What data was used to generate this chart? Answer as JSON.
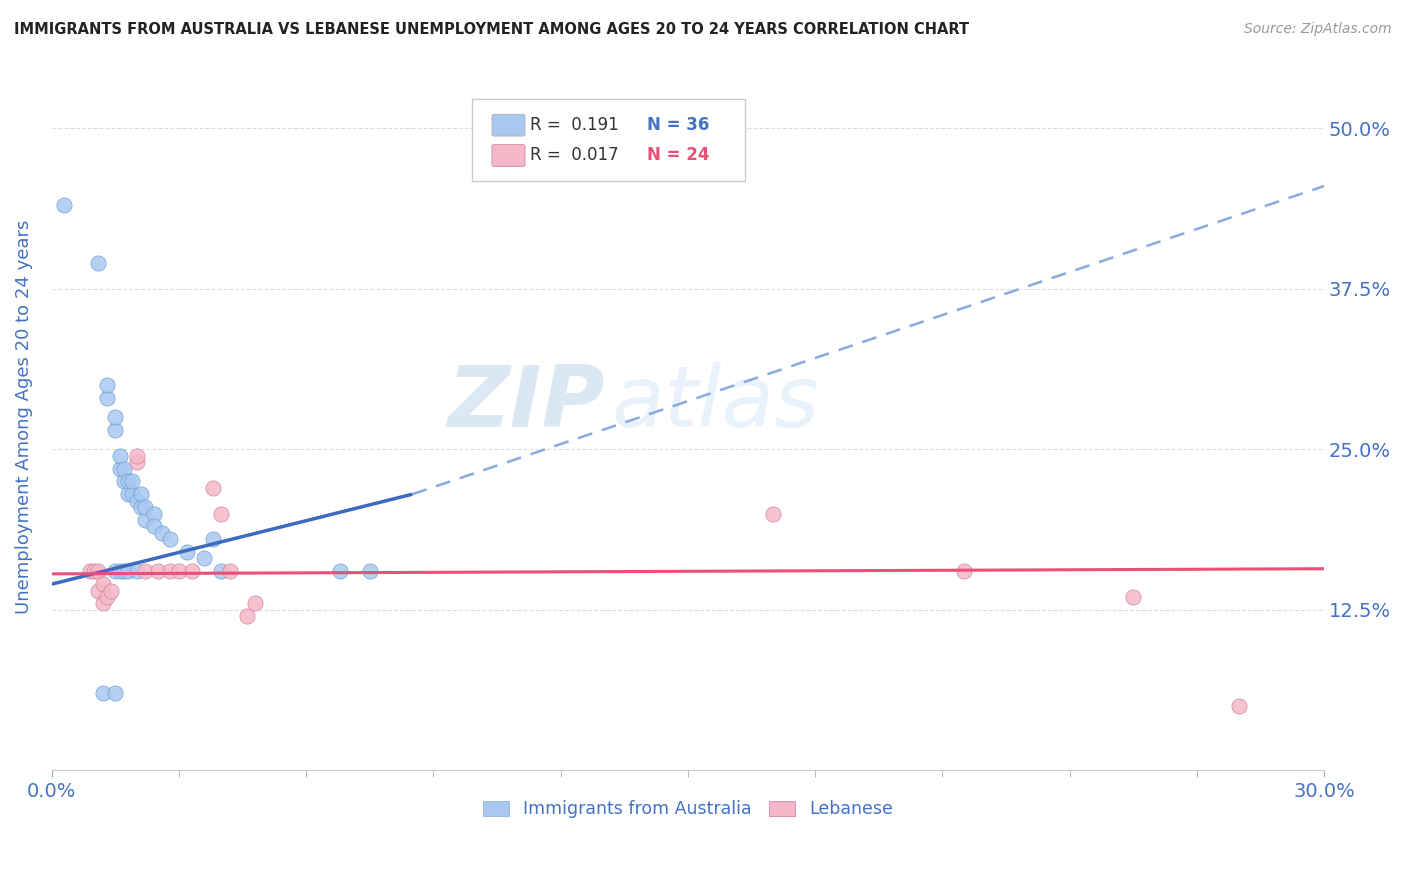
{
  "title": "IMMIGRANTS FROM AUSTRALIA VS LEBANESE UNEMPLOYMENT AMONG AGES 20 TO 24 YEARS CORRELATION CHART",
  "source": "Source: ZipAtlas.com",
  "ylabel": "Unemployment Among Ages 20 to 24 years",
  "xlim": [
    0.0,
    0.3
  ],
  "ylim": [
    0.0,
    0.55
  ],
  "yticks": [
    0.125,
    0.25,
    0.375,
    0.5
  ],
  "ytick_labels": [
    "12.5%",
    "25.0%",
    "37.5%",
    "50.0%"
  ],
  "xtick_labels": [
    "0.0%",
    "30.0%"
  ],
  "legend_R1": "R =  0.191",
  "legend_N1": "N = 36",
  "legend_R2": "R =  0.017",
  "legend_N2": "N = 24",
  "watermark_zip": "ZIP",
  "watermark_atlas": "atlas",
  "series1_color": "#a8c8f0",
  "series2_color": "#f5b8c8",
  "series1_line_color": "#3a6bbf",
  "series2_line_color": "#e8507a",
  "series1_dash_color": "#88aadd",
  "background_color": "#ffffff",
  "grid_color": "#dddddd",
  "axis_label_color": "#4472c4",
  "title_color": "#222222",
  "source_color": "#999999",
  "series1_scatter": [
    [
      0.003,
      0.44
    ],
    [
      0.011,
      0.395
    ],
    [
      0.013,
      0.29
    ],
    [
      0.013,
      0.3
    ],
    [
      0.015,
      0.265
    ],
    [
      0.015,
      0.275
    ],
    [
      0.016,
      0.235
    ],
    [
      0.016,
      0.245
    ],
    [
      0.017,
      0.225
    ],
    [
      0.017,
      0.235
    ],
    [
      0.018,
      0.215
    ],
    [
      0.018,
      0.225
    ],
    [
      0.019,
      0.215
    ],
    [
      0.019,
      0.225
    ],
    [
      0.02,
      0.21
    ],
    [
      0.021,
      0.205
    ],
    [
      0.021,
      0.215
    ],
    [
      0.022,
      0.195
    ],
    [
      0.022,
      0.205
    ],
    [
      0.024,
      0.2
    ],
    [
      0.024,
      0.19
    ],
    [
      0.026,
      0.185
    ],
    [
      0.028,
      0.18
    ],
    [
      0.032,
      0.17
    ],
    [
      0.036,
      0.165
    ],
    [
      0.038,
      0.18
    ],
    [
      0.04,
      0.155
    ],
    [
      0.015,
      0.155
    ],
    [
      0.016,
      0.155
    ],
    [
      0.017,
      0.155
    ],
    [
      0.018,
      0.155
    ],
    [
      0.02,
      0.155
    ],
    [
      0.068,
      0.155
    ],
    [
      0.075,
      0.155
    ],
    [
      0.012,
      0.06
    ],
    [
      0.015,
      0.06
    ]
  ],
  "series2_scatter": [
    [
      0.009,
      0.155
    ],
    [
      0.01,
      0.155
    ],
    [
      0.011,
      0.14
    ],
    [
      0.011,
      0.155
    ],
    [
      0.012,
      0.13
    ],
    [
      0.012,
      0.145
    ],
    [
      0.013,
      0.135
    ],
    [
      0.014,
      0.14
    ],
    [
      0.02,
      0.24
    ],
    [
      0.02,
      0.245
    ],
    [
      0.022,
      0.155
    ],
    [
      0.025,
      0.155
    ],
    [
      0.028,
      0.155
    ],
    [
      0.03,
      0.155
    ],
    [
      0.033,
      0.155
    ],
    [
      0.038,
      0.22
    ],
    [
      0.04,
      0.2
    ],
    [
      0.042,
      0.155
    ],
    [
      0.046,
      0.12
    ],
    [
      0.048,
      0.13
    ],
    [
      0.17,
      0.2
    ],
    [
      0.215,
      0.155
    ],
    [
      0.255,
      0.135
    ],
    [
      0.28,
      0.05
    ]
  ],
  "series1_trendline_solid": [
    [
      0.0,
      0.145
    ],
    [
      0.085,
      0.215
    ]
  ],
  "series1_trendline_dashed": [
    [
      0.085,
      0.215
    ],
    [
      0.3,
      0.455
    ]
  ],
  "series2_trendline": [
    [
      0.0,
      0.153
    ],
    [
      0.3,
      0.157
    ]
  ]
}
